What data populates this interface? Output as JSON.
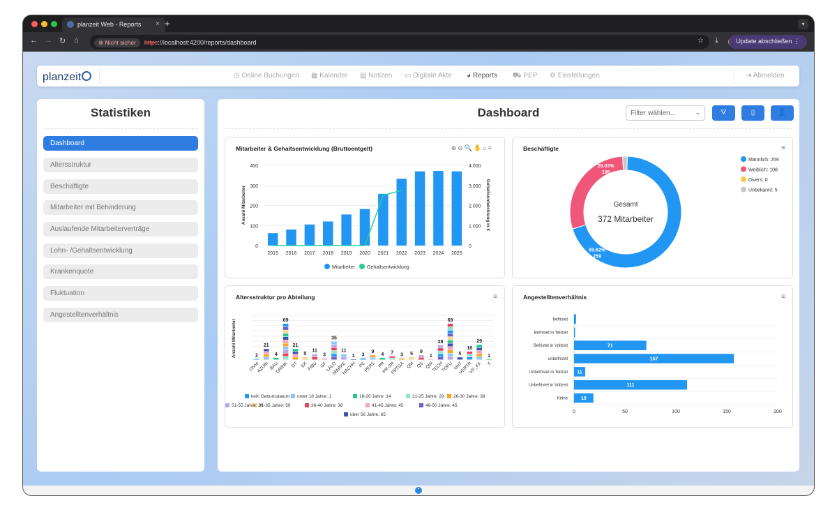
{
  "browser": {
    "tab_title": "planzeit Web - Reports",
    "tab_close": "×",
    "new_tab": "+",
    "not_secure": "Nicht sicher",
    "url_scheme": "https",
    "url_rest": "://localhost:4200/reports/dashboard",
    "update_label": "Update abschließen"
  },
  "app": {
    "logo": "planzeit",
    "nav": [
      "Online Buchungen",
      "Kalender",
      "Notizen",
      "Digitale Akte",
      "Reports",
      "PEP",
      "Einstellungen"
    ],
    "logout": "Abmelden"
  },
  "sidebar": {
    "title": "Statistiken",
    "items": [
      "Dashboard",
      "Altersstruktur",
      "Beschäftigte",
      "Mitarbeiter mit Behinderung",
      "Auslaufende Mitarbeiterverträge",
      "Lohn- /Gehaltsentwicklung",
      "Krankenquote",
      "Fluktuation",
      "Angestelltenverhältnis"
    ]
  },
  "main": {
    "title": "Dashboard",
    "filter_placeholder": "Filter wählen..."
  },
  "chart_data": [
    {
      "type": "bar",
      "title": "Mitarbeiter & Gehaltsentwicklung (Bruttoentgelt)",
      "categories": [
        "2015",
        "2016",
        "2017",
        "2018",
        "2019",
        "2020",
        "2021",
        "2022",
        "2023",
        "2024",
        "2025"
      ],
      "series": [
        {
          "name": "Mitarbeiter",
          "type": "bar",
          "color": "#2196f3",
          "values": [
            62,
            80,
            105,
            120,
            155,
            182,
            258,
            333,
            370,
            372,
            370
          ]
        },
        {
          "name": "Gehaltsentwicklung",
          "type": "line",
          "color": "#26d09a",
          "values": [
            0,
            0,
            0,
            0,
            0,
            0,
            2500,
            2750,
            null,
            null,
            null
          ]
        }
      ],
      "ylabel": "Anzahl Mitarbeiter",
      "y2label": "Gehaltsentwicklung in €",
      "ylim": [
        0,
        400
      ],
      "y2lim": [
        0,
        4000
      ],
      "yticks": [
        "0",
        "100",
        "200",
        "300",
        "400"
      ],
      "y2ticks": [
        "0",
        "1.000",
        "2.000",
        "3.000",
        "4.000"
      ]
    },
    {
      "type": "pie",
      "title": "Beschäftigte",
      "center_label": "Gesamt",
      "center_value": "372 Mitarbeiter",
      "slices": [
        {
          "label": "Männlich: 259",
          "value": 259,
          "color": "#2196f3",
          "data_label": [
            "69.62%",
            "259"
          ]
        },
        {
          "label": "Weiblich: 108",
          "value": 108,
          "color": "#f0557a",
          "data_label": [
            "29.03%",
            "108"
          ]
        },
        {
          "label": "Divers: 0",
          "value": 0,
          "color": "#f7c948"
        },
        {
          "label": "Unbekannt: 5",
          "value": 5,
          "color": "#c8c8c8"
        }
      ]
    },
    {
      "type": "bar",
      "title": "Altersstruktur pro Abteilung",
      "ylabel": "Anzahl Mitarbeiter",
      "ylim": [
        0,
        85
      ],
      "yticks": [
        "0",
        "5",
        "15",
        "25",
        "35",
        "45",
        "55",
        "65",
        "75",
        "85"
      ],
      "categories": [
        "Ohne",
        "AZUBI",
        "BAU",
        "DRINK",
        "DT",
        "EK",
        "FIBU",
        "GF",
        "LALO",
        "MARKE",
        "NACHH",
        "PE",
        "PERS",
        "PR",
        "PR-SR",
        "PRTGA",
        "QM",
        "QS",
        "QW",
        "TECH",
        "TOFU",
        "VeIT",
        "VERTR",
        "VP_KF",
        "X"
      ],
      "totals": [
        2,
        21,
        4,
        69,
        21,
        5,
        11,
        3,
        35,
        11,
        1,
        3,
        9,
        4,
        7,
        3,
        5,
        9,
        1,
        28,
        69,
        5,
        16,
        29,
        1
      ],
      "legend": [
        {
          "label": "kein Geburtsdatum: 9",
          "color": "#2196f3"
        },
        {
          "label": "unter 18 Jahre: 1",
          "color": "#8fc7f4"
        },
        {
          "label": "18-20 Jahre: 14",
          "color": "#26c98a"
        },
        {
          "label": "21-25 Jahre: 29",
          "color": "#8ee8c8"
        },
        {
          "label": "26-30 Jahre: 38",
          "color": "#f5a623"
        },
        {
          "label": "31-35 Jahre: 59",
          "color": "#fcd98a"
        },
        {
          "label": "36-40 Jahre: 38",
          "color": "#e8415c"
        },
        {
          "label": "41-45 Jahre: 45",
          "color": "#f5a4b2"
        },
        {
          "label": "46-50 Jahre: 45",
          "color": "#6e5fc8"
        },
        {
          "label": "51-55 Jahre: 29",
          "color": "#b7a7ee"
        },
        {
          "label": "über 56 Jahre: 65",
          "color": "#3f51b5"
        }
      ]
    },
    {
      "type": "bar",
      "orientation": "horizontal",
      "title": "Angestelltenverhältnis",
      "color": "#2196f3",
      "categories": [
        "befristet",
        "Befristet in Teilzeit",
        "Befristet in Vollzeit",
        "unbefristet",
        "Unbefristet in Teilzeit",
        "Unbefristet in Vollzeit",
        "Keine"
      ],
      "values": [
        2,
        1,
        71,
        157,
        11,
        111,
        19
      ],
      "data_labels": [
        "",
        "",
        "71",
        "157",
        "11",
        "111",
        "19"
      ],
      "xlim": [
        0,
        200
      ],
      "xticks": [
        "0",
        "50",
        "100",
        "150",
        "200"
      ]
    }
  ]
}
